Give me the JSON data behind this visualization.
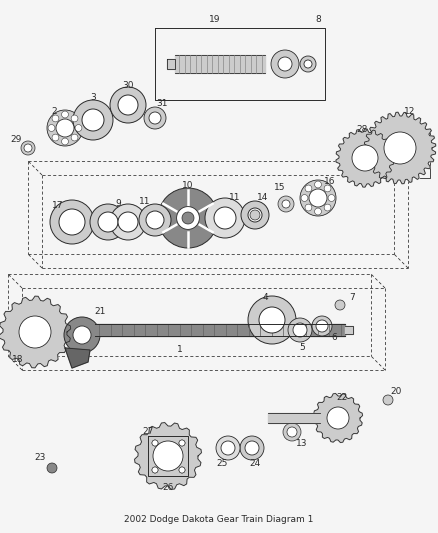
{
  "title": "2002 Dodge Dakota Gear Train Diagram 1",
  "bg_color": "#f5f5f5",
  "line_color": "#2a2a2a",
  "gray1": "#aaaaaa",
  "gray2": "#cccccc",
  "gray3": "#888888",
  "gray4": "#666666",
  "gray5": "#dddddd",
  "white": "#ffffff",
  "figw": 4.38,
  "figh": 5.33,
  "dpi": 100
}
